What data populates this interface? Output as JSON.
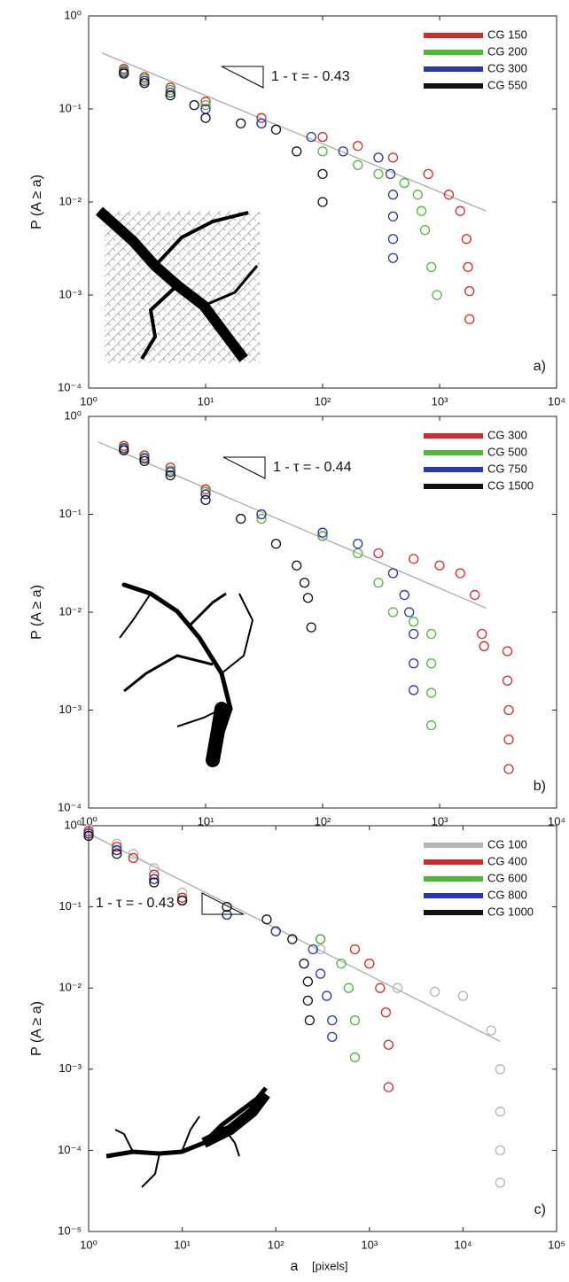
{
  "chart_data": [
    {
      "type": "scatter",
      "xscale": "log",
      "yscale": "log",
      "ylabel": "P (A ≥ a)",
      "panel_label": "a)",
      "annotation": "1 - τ = - 0.43",
      "xlim": [
        1,
        10000
      ],
      "ylim": [
        0.0001,
        1
      ],
      "xticks": [
        {
          "value": 1,
          "label": "10⁰"
        },
        {
          "value": 10,
          "label": "10¹"
        },
        {
          "value": 100,
          "label": "10²"
        },
        {
          "value": 1000,
          "label": "10³"
        },
        {
          "value": 10000,
          "label": "10⁴"
        }
      ],
      "yticks": [
        {
          "value": 0.0001,
          "label": "10⁻⁴"
        },
        {
          "value": 0.001,
          "label": "10⁻³"
        },
        {
          "value": 0.01,
          "label": "10⁻²"
        },
        {
          "value": 0.1,
          "label": "10⁻¹"
        },
        {
          "value": 1,
          "label": "10⁰"
        }
      ],
      "fit_line": {
        "color": "#aaaaaa",
        "x": [
          1.3,
          2500
        ],
        "values": [
          0.4,
          0.008
        ]
      },
      "series": [
        {
          "name": "CG 150",
          "color": "#d42a2a",
          "x": [
            2,
            3,
            5,
            10,
            30,
            100,
            200,
            400,
            800,
            1200,
            1500,
            1700,
            1750,
            1800,
            1800
          ],
          "values": [
            0.27,
            0.22,
            0.17,
            0.12,
            0.08,
            0.05,
            0.04,
            0.03,
            0.02,
            0.012,
            0.008,
            0.004,
            0.002,
            0.0011,
            0.00055
          ]
        },
        {
          "name": "CG 200",
          "color": "#4fb83a",
          "x": [
            2,
            3,
            5,
            10,
            30,
            100,
            200,
            300,
            500,
            650,
            700,
            750,
            850,
            950
          ],
          "values": [
            0.26,
            0.21,
            0.16,
            0.11,
            0.07,
            0.035,
            0.025,
            0.02,
            0.016,
            0.012,
            0.008,
            0.005,
            0.002,
            0.001
          ]
        },
        {
          "name": "CG 300",
          "color": "#2a35b0",
          "x": [
            2,
            3,
            5,
            10,
            30,
            80,
            150,
            300,
            380,
            400,
            400,
            400,
            400
          ],
          "values": [
            0.25,
            0.2,
            0.15,
            0.1,
            0.07,
            0.05,
            0.035,
            0.03,
            0.02,
            0.012,
            0.007,
            0.004,
            0.0025
          ]
        },
        {
          "name": "CG 550",
          "color": "#111111",
          "x": [
            2,
            3,
            5,
            8,
            10,
            20,
            40,
            60,
            100,
            100
          ],
          "values": [
            0.24,
            0.19,
            0.14,
            0.11,
            0.08,
            0.07,
            0.06,
            0.035,
            0.02,
            0.01
          ]
        }
      ]
    },
    {
      "type": "scatter",
      "xscale": "log",
      "yscale": "log",
      "ylabel": "P (A ≥ a)",
      "panel_label": "b)",
      "annotation": "1 - τ = - 0.44",
      "xlim": [
        1,
        10000
      ],
      "ylim": [
        0.0001,
        1
      ],
      "xticks": [
        {
          "value": 1,
          "label": "10⁰"
        },
        {
          "value": 10,
          "label": "10¹"
        },
        {
          "value": 100,
          "label": "10²"
        },
        {
          "value": 1000,
          "label": "10³"
        },
        {
          "value": 10000,
          "label": "10⁴"
        }
      ],
      "yticks": [
        {
          "value": 0.0001,
          "label": "10⁻⁴"
        },
        {
          "value": 0.001,
          "label": "10⁻³"
        },
        {
          "value": 0.01,
          "label": "10⁻²"
        },
        {
          "value": 0.1,
          "label": "10⁻¹"
        },
        {
          "value": 1,
          "label": "10⁰"
        }
      ],
      "fit_line": {
        "color": "#aaaaaa",
        "x": [
          1.2,
          2500
        ],
        "values": [
          0.55,
          0.011
        ]
      },
      "series": [
        {
          "name": "CG 300",
          "color": "#d42a2a",
          "x": [
            2,
            3,
            5,
            10,
            30,
            100,
            300,
            600,
            1000,
            1500,
            2000,
            2300,
            2400,
            3800,
            3800,
            3900,
            3900,
            3900
          ],
          "values": [
            0.5,
            0.4,
            0.3,
            0.18,
            0.1,
            0.06,
            0.04,
            0.035,
            0.03,
            0.025,
            0.015,
            0.006,
            0.0045,
            0.004,
            0.002,
            0.001,
            0.0005,
            0.00025
          ]
        },
        {
          "name": "CG 500",
          "color": "#4fb83a",
          "x": [
            2,
            3,
            5,
            10,
            30,
            100,
            200,
            300,
            400,
            600,
            850,
            850,
            850,
            850
          ],
          "values": [
            0.48,
            0.38,
            0.28,
            0.17,
            0.09,
            0.06,
            0.04,
            0.02,
            0.01,
            0.008,
            0.006,
            0.003,
            0.0015,
            0.0007
          ]
        },
        {
          "name": "CG 750",
          "color": "#2a35b0",
          "x": [
            2,
            3,
            5,
            10,
            30,
            100,
            200,
            400,
            500,
            550,
            600,
            600,
            600
          ],
          "values": [
            0.47,
            0.37,
            0.27,
            0.16,
            0.1,
            0.065,
            0.05,
            0.025,
            0.015,
            0.01,
            0.006,
            0.003,
            0.0016
          ]
        },
        {
          "name": "CG 1500",
          "color": "#111111",
          "x": [
            2,
            3,
            5,
            10,
            20,
            40,
            60,
            70,
            75,
            80
          ],
          "values": [
            0.45,
            0.35,
            0.25,
            0.14,
            0.09,
            0.05,
            0.03,
            0.02,
            0.014,
            0.007
          ]
        }
      ]
    },
    {
      "type": "scatter",
      "xscale": "log",
      "yscale": "log",
      "ylabel": "P (A ≥ a)",
      "panel_label": "c)",
      "annotation": "1 - τ = - 0.43",
      "xlabel": "a",
      "xlabel_unit": "[pixels]",
      "xlim": [
        1,
        100000
      ],
      "ylim": [
        1e-05,
        1
      ],
      "xticks": [
        {
          "value": 1,
          "label": "10⁰"
        },
        {
          "value": 10,
          "label": "10¹"
        },
        {
          "value": 100,
          "label": "10²"
        },
        {
          "value": 1000,
          "label": "10³"
        },
        {
          "value": 10000,
          "label": "10⁴"
        },
        {
          "value": 100000,
          "label": "10⁵"
        }
      ],
      "yticks": [
        {
          "value": 1e-05,
          "label": "10⁻⁵"
        },
        {
          "value": 0.0001,
          "label": "10⁻⁴"
        },
        {
          "value": 0.001,
          "label": "10⁻³"
        },
        {
          "value": 0.01,
          "label": "10⁻²"
        },
        {
          "value": 0.1,
          "label": "10⁻¹"
        },
        {
          "value": 1,
          "label": "10⁰"
        }
      ],
      "fit_line": {
        "color": "#aaaaaa",
        "x": [
          1,
          25000
        ],
        "values": [
          0.8,
          0.0022
        ]
      },
      "series": [
        {
          "name": "CG 100",
          "color": "#b5b5b5",
          "x": [
            1,
            2,
            3,
            5,
            10,
            30,
            100,
            300,
            1000,
            2000,
            5000,
            10000,
            20000,
            25000,
            25000,
            25000,
            25000
          ],
          "values": [
            0.9,
            0.6,
            0.45,
            0.3,
            0.15,
            0.08,
            0.05,
            0.03,
            0.02,
            0.01,
            0.009,
            0.008,
            0.003,
            0.001,
            0.0003,
            0.0001,
            4e-05
          ]
        },
        {
          "name": "CG 400",
          "color": "#d42a2a",
          "x": [
            1,
            2,
            3,
            5,
            10,
            30,
            100,
            300,
            700,
            1000,
            1300,
            1500,
            1600,
            1600
          ],
          "values": [
            0.85,
            0.55,
            0.4,
            0.25,
            0.13,
            0.08,
            0.05,
            0.04,
            0.03,
            0.02,
            0.01,
            0.005,
            0.002,
            0.0006
          ]
        },
        {
          "name": "CG 600",
          "color": "#4fb83a",
          "x": [
            1,
            2,
            5,
            10,
            30,
            100,
            300,
            500,
            600,
            700,
            700
          ],
          "values": [
            0.8,
            0.5,
            0.22,
            0.12,
            0.08,
            0.05,
            0.04,
            0.02,
            0.01,
            0.004,
            0.0014
          ]
        },
        {
          "name": "CG 800",
          "color": "#2a35b0",
          "x": [
            1,
            2,
            5,
            10,
            30,
            100,
            250,
            300,
            350,
            400,
            400
          ],
          "values": [
            0.8,
            0.5,
            0.22,
            0.12,
            0.08,
            0.05,
            0.03,
            0.015,
            0.008,
            0.004,
            0.0025
          ]
        },
        {
          "name": "CG 1000",
          "color": "#111111",
          "x": [
            1,
            2,
            5,
            10,
            30,
            80,
            150,
            200,
            220,
            220,
            230
          ],
          "values": [
            0.75,
            0.45,
            0.2,
            0.12,
            0.1,
            0.07,
            0.04,
            0.02,
            0.012,
            0.007,
            0.004
          ]
        }
      ]
    }
  ]
}
